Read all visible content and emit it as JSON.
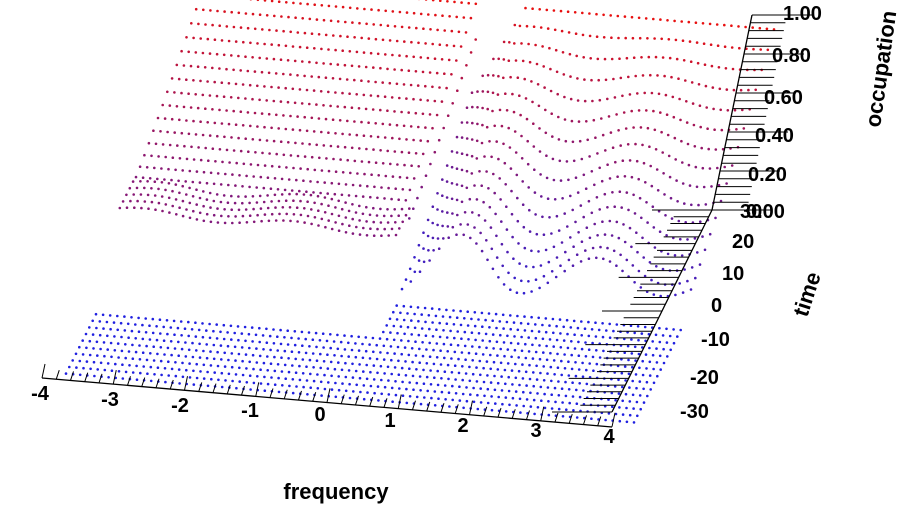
{
  "chart_data": {
    "type": "scatter",
    "style": "3d-dotted-surface",
    "xlabel": "frequency",
    "ylabel": "time",
    "zlabel": "occupation",
    "xlim": [
      -4,
      4
    ],
    "ylim": [
      -30,
      30
    ],
    "zlim": [
      0,
      1
    ],
    "x_ticks": [
      "-4",
      "-3",
      "-2",
      "-1",
      "0",
      "1",
      "2",
      "3",
      "4"
    ],
    "y_ticks": [
      "-30",
      "-20",
      "-10",
      "0",
      "10",
      "20",
      "30"
    ],
    "z_ticks": [
      "0.00",
      "0.20",
      "0.40",
      "0.60",
      "0.80",
      "1.00"
    ],
    "color_low": "#2020e0",
    "color_high": "#e81010",
    "grid": false,
    "description_of_data": {
      "before_t0": "occupation ≈ 0 for all frequencies (flat blue plane)",
      "after_t0": "occupation rises toward 1 on the positive-frequency side, with damped oscillations near frequency ≈ 1–2",
      "negative_side": "occupation stays ≈ 0.5 plateau region for negative frequencies at early times, rising to red at later times"
    },
    "series": [
      {
        "time": -30,
        "x": [
          -4,
          -3,
          -2,
          -1,
          0,
          1,
          2,
          3,
          4
        ],
        "occupation": [
          0.0,
          0.0,
          0.0,
          0.0,
          0.0,
          0.0,
          0.0,
          0.0,
          0.0
        ]
      },
      {
        "time": 0,
        "x": [
          -4,
          -3,
          -2,
          -1,
          0,
          1,
          2,
          3,
          4
        ],
        "occupation": [
          0.0,
          0.0,
          0.0,
          0.0,
          0.12,
          0.1,
          0.18,
          0.15,
          0.15
        ]
      },
      {
        "time": 15,
        "x": [
          -4,
          -3,
          -2,
          -1,
          0,
          1,
          2,
          3,
          4
        ],
        "occupation": [
          0.0,
          0.0,
          0.0,
          0.0,
          0.25,
          0.45,
          0.38,
          0.42,
          0.42
        ]
      },
      {
        "time": 30,
        "x": [
          -4,
          -3,
          -2,
          -1,
          0,
          1,
          2,
          3,
          4
        ],
        "occupation": [
          0.0,
          0.0,
          0.0,
          0.05,
          0.5,
          1.0,
          1.0,
          1.0,
          1.0
        ]
      }
    ]
  }
}
